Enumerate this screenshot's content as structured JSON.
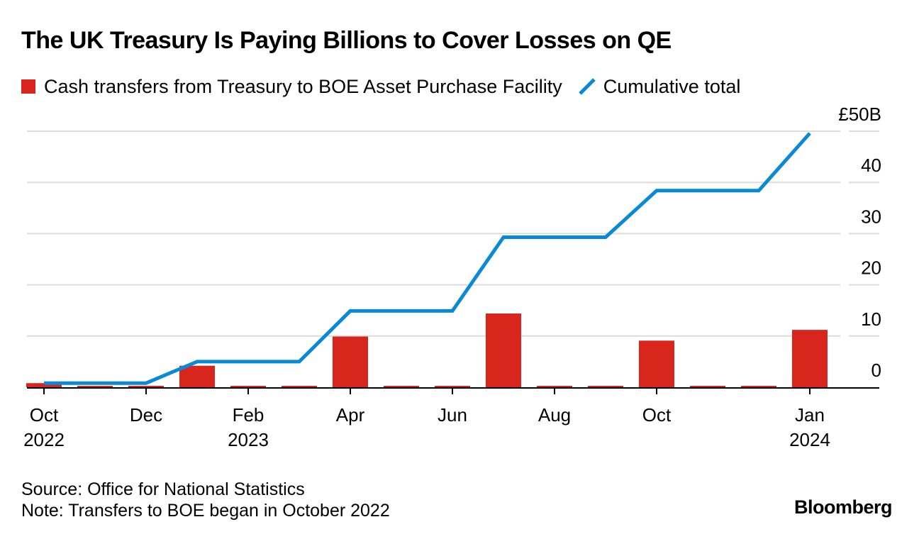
{
  "chart_data": {
    "type": "bar+line",
    "title": "The UK Treasury Is Paying Billions to Cover Losses on QE",
    "legend": [
      {
        "label": "Cash transfers from Treasury to BOE Asset Purchase Facility",
        "kind": "bar",
        "color": "#d9261c"
      },
      {
        "label": "Cumulative total",
        "kind": "line",
        "color": "#0a8ad6"
      }
    ],
    "y_unit_prefix": "£",
    "y_unit_suffix": "B",
    "ylim": [
      0,
      50
    ],
    "yticks": [
      0,
      10,
      20,
      30,
      40,
      50
    ],
    "ytick_labels": [
      "0",
      "10",
      "20",
      "30",
      "40",
      "£50B"
    ],
    "categories": [
      "Oct 2022",
      "Nov 2022",
      "Dec 2022",
      "Jan 2023",
      "Feb 2023",
      "Mar 2023",
      "Apr 2023",
      "May 2023",
      "Jun 2023",
      "Jul 2023",
      "Aug 2023",
      "Sep 2023",
      "Oct 2023",
      "Nov 2023",
      "Dec 2023",
      "Jan 2024"
    ],
    "x_tick_labels": [
      {
        "index": 0,
        "line1": "Oct",
        "line2": "2022"
      },
      {
        "index": 2,
        "line1": "Dec",
        "line2": ""
      },
      {
        "index": 4,
        "line1": "Feb",
        "line2": "2023"
      },
      {
        "index": 6,
        "line1": "Apr",
        "line2": ""
      },
      {
        "index": 8,
        "line1": "Jun",
        "line2": ""
      },
      {
        "index": 10,
        "line1": "Aug",
        "line2": ""
      },
      {
        "index": 12,
        "line1": "Oct",
        "line2": ""
      },
      {
        "index": 15,
        "line1": "Jan",
        "line2": "2024"
      }
    ],
    "series": [
      {
        "name": "Cash transfers from Treasury to BOE Asset Purchase Facility",
        "type": "bar",
        "color": "#d9261c",
        "values": [
          0.8,
          0,
          0,
          4.2,
          0,
          0,
          9.9,
          0,
          0,
          14.4,
          0,
          0,
          9.1,
          0,
          0,
          11.2
        ]
      },
      {
        "name": "Cumulative total",
        "type": "line",
        "color": "#0a8ad6",
        "values": [
          0.8,
          0.8,
          0.8,
          5.0,
          5.0,
          5.0,
          14.9,
          14.9,
          14.9,
          29.3,
          29.3,
          29.3,
          38.4,
          38.4,
          38.4,
          49.6
        ]
      }
    ]
  },
  "footer": {
    "source": "Source: Office for National Statistics",
    "note": "Note: Transfers to BOE began in October 2022"
  },
  "brand": "Bloomberg"
}
